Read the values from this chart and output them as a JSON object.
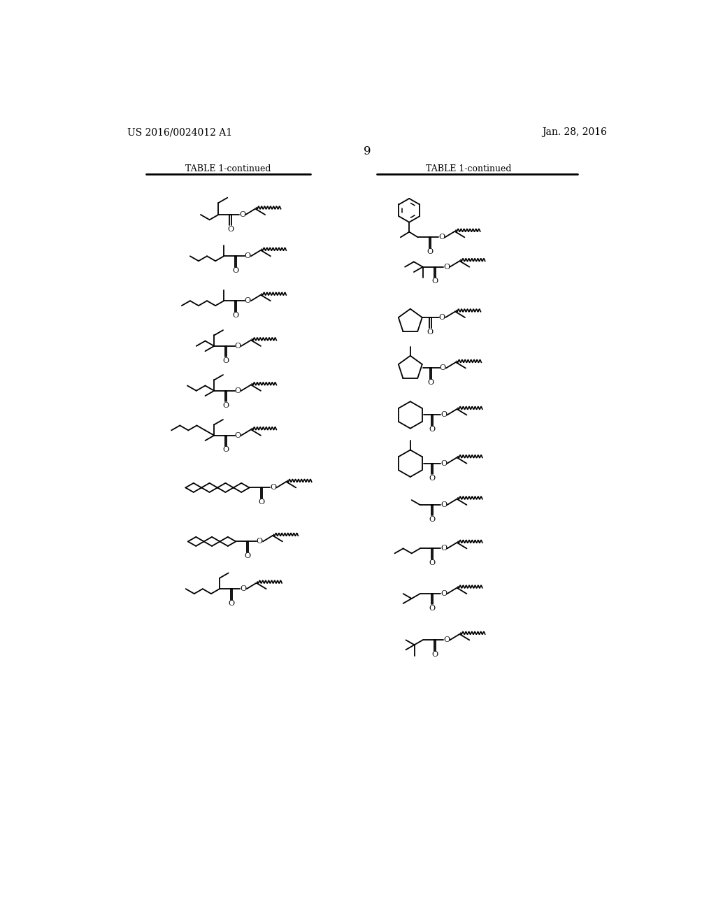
{
  "title_left": "TABLE 1-continued",
  "title_right": "TABLE 1-continued",
  "page_num": "9",
  "header_left": "US 2016/0024012 A1",
  "header_right": "Jan. 28, 2016",
  "bg_color": "#ffffff",
  "font_size_header": 10,
  "font_size_table": 9,
  "font_size_page": 12,
  "font_size_atom": 8
}
